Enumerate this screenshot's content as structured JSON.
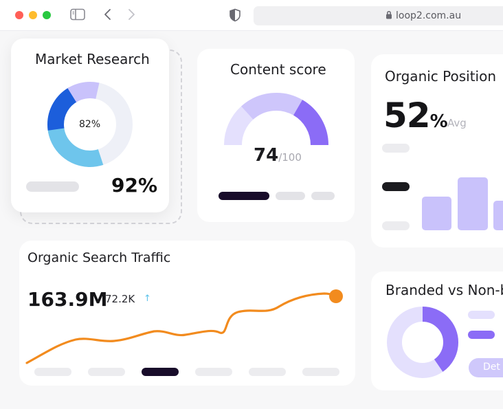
{
  "browser": {
    "url": "loop2.com.au"
  },
  "market_research": {
    "title": "Market Research",
    "donut_center_label": "82%",
    "value": "92%"
  },
  "content_score": {
    "title": "Content score",
    "score": "74",
    "max": "/100"
  },
  "organic_position": {
    "title": "Organic Position",
    "value": "52",
    "unit": "%",
    "avg_label": "Avg"
  },
  "organic_traffic": {
    "title": "Organic Search Traffic",
    "total": "163.9M",
    "change": "72.2K",
    "trend": "up"
  },
  "branded": {
    "title": "Branded vs Non-b",
    "button_label": "Det"
  },
  "colors": {
    "accent_purple": "#8b6cf6",
    "lavender": "#c9c2fb",
    "blue": "#1c5edb",
    "light_blue": "#6ec5ec",
    "orange": "#f28b1e",
    "dark": "#180c2a"
  }
}
